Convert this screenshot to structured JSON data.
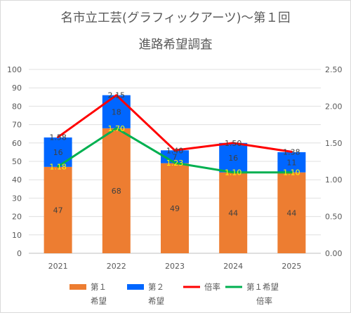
{
  "chart_data": {
    "type": "bar",
    "title_line1": "名市立工芸(グラフィックアーツ)〜第１回",
    "title_line2": "進路希望調査",
    "categories": [
      "2021",
      "2022",
      "2023",
      "2024",
      "2025"
    ],
    "series": [
      {
        "name": "第１希望",
        "type": "stacked-bar",
        "axis": "left",
        "color": "#ed7d31",
        "values": [
          47,
          68,
          49,
          44,
          44
        ]
      },
      {
        "name": "第２希望",
        "type": "stacked-bar",
        "axis": "left",
        "color": "#0066ff",
        "values": [
          16,
          18,
          7,
          16,
          11
        ]
      },
      {
        "name": "倍率",
        "type": "line",
        "axis": "right",
        "color": "#ff0000",
        "values": [
          1.58,
          2.15,
          1.4,
          1.5,
          1.38
        ]
      },
      {
        "name": "第１希望倍率",
        "type": "line",
        "axis": "right",
        "color": "#00b050",
        "values": [
          1.18,
          1.7,
          1.23,
          1.1,
          1.1
        ]
      }
    ],
    "left_axis": {
      "min": 0,
      "max": 100,
      "step": 10,
      "ticks": [
        "0",
        "10",
        "20",
        "30",
        "40",
        "50",
        "60",
        "70",
        "80",
        "90",
        "100"
      ]
    },
    "right_axis": {
      "min": 0,
      "max": 2.5,
      "step": 0.5,
      "ticks": [
        "0.00",
        "0.50",
        "1.00",
        "1.50",
        "2.00",
        "2.50"
      ]
    },
    "bar_labels": {
      "first": [
        "47",
        "68",
        "49",
        "44",
        "44"
      ],
      "second": [
        "16",
        "18",
        "7",
        "16",
        "11"
      ]
    },
    "line_labels": {
      "ratio": [
        "1.58",
        "2.15",
        "1.40",
        "1.50",
        "1.38"
      ],
      "first_ratio": [
        "1.18",
        "1.70",
        "1.23",
        "1.10",
        "1.10"
      ]
    },
    "legend": {
      "position": "bottom",
      "items": [
        {
          "line1": "第１",
          "line2": "希望",
          "kind": "box",
          "color": "#ed7d31"
        },
        {
          "line1": "第２",
          "line2": "希望",
          "kind": "box",
          "color": "#0066ff"
        },
        {
          "line1": "倍率",
          "line2": "",
          "kind": "line",
          "color": "#ff0000"
        },
        {
          "line1": "第１希望",
          "line2": "倍率",
          "kind": "line",
          "color": "#00b050"
        }
      ]
    },
    "grid": true
  }
}
